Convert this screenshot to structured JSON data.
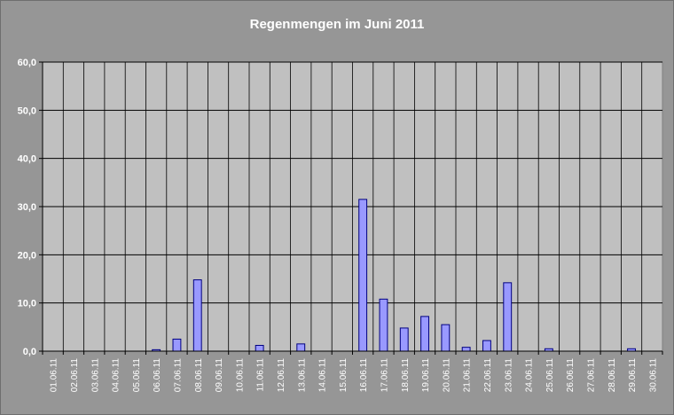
{
  "chart_data": {
    "type": "bar",
    "title": "Regenmengen im Juni 2011",
    "xlabel": "",
    "ylabel": "",
    "ylim": [
      0,
      60
    ],
    "yticks": [
      "0,0",
      "10,0",
      "20,0",
      "30,0",
      "40,0",
      "50,0",
      "60,0"
    ],
    "grid": true,
    "legend": "none",
    "categories": [
      "01.06.11",
      "02.06.11",
      "03.06.11",
      "04.06.11",
      "05.06.11",
      "06.06.11",
      "07.06.11",
      "08.06.11",
      "09.06.11",
      "10.06.11",
      "11.06.11",
      "12.06.11",
      "13.06.11",
      "14.06.11",
      "15.06.11",
      "16.06.11",
      "17.06.11",
      "18.06.11",
      "19.06.11",
      "20.06.11",
      "21.06.11",
      "22.06.11",
      "23.06.11",
      "24.06.11",
      "25.06.11",
      "26.06.11",
      "27.06.11",
      "28.06.11",
      "29.06.11",
      "30.06.11"
    ],
    "values": [
      0,
      0,
      0,
      0,
      0,
      0.3,
      2.5,
      14.8,
      0,
      0,
      1.2,
      0,
      1.5,
      0,
      0,
      31.5,
      10.8,
      4.8,
      7.2,
      5.5,
      0.8,
      2.2,
      14.2,
      0,
      0.5,
      0,
      0,
      0,
      0.5,
      0
    ],
    "colors": {
      "bar_fill": "#9999ff",
      "bar_stroke": "#000080",
      "plot_background": "#c0c0c0",
      "chart_background": "#969696",
      "gridline": "#000000"
    }
  }
}
